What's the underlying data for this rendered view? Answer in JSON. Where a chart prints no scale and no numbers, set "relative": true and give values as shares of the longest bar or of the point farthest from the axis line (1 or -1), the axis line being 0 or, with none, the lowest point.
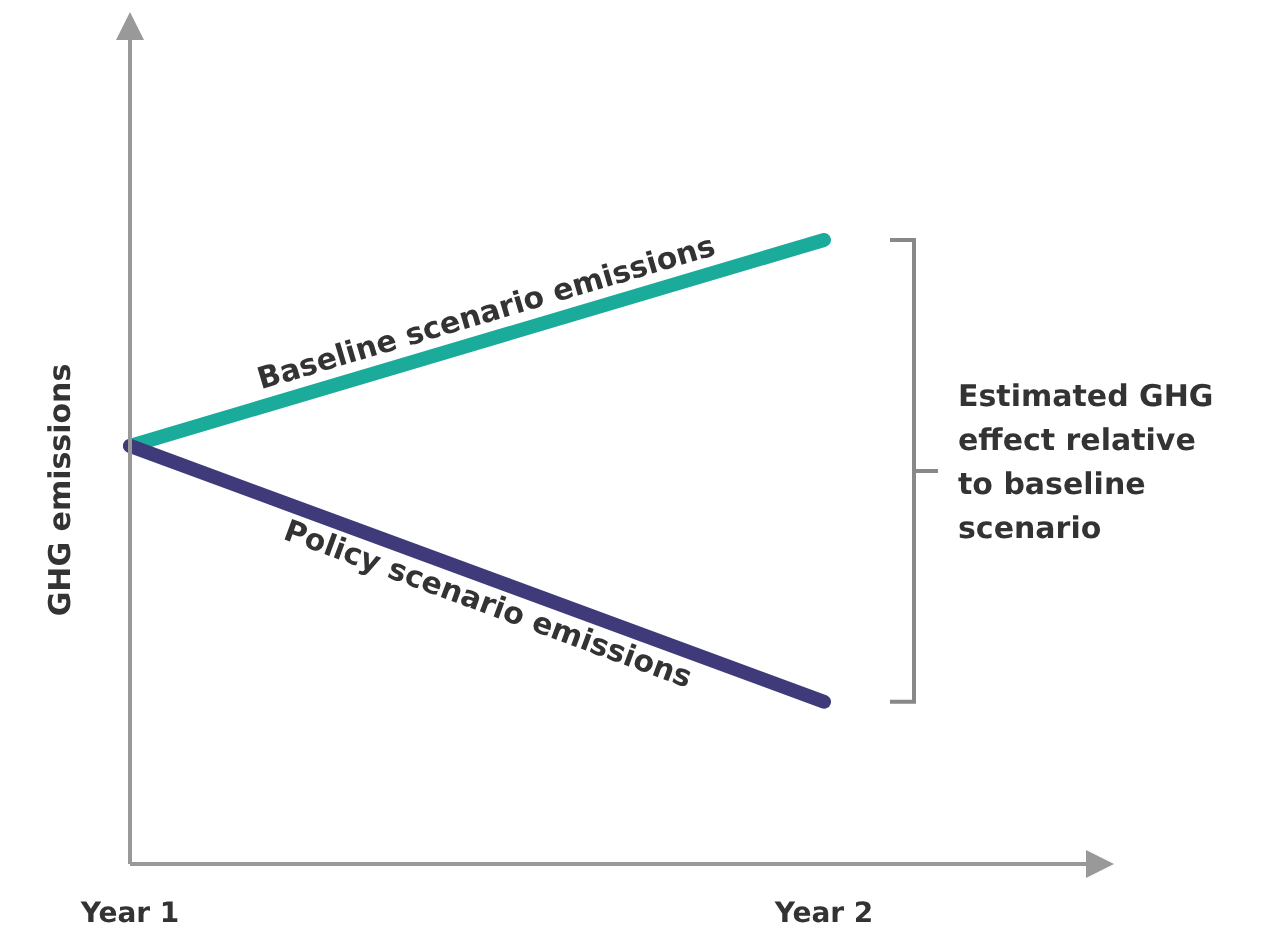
{
  "chart_data": {
    "type": "line",
    "relative": true,
    "ylabel": "GHG emissions",
    "categories": [
      "Year 1",
      "Year 2"
    ],
    "series": [
      {
        "name": "Baseline scenario emissions",
        "color": "#1aab9b",
        "values": [
          0.67,
          1
        ]
      },
      {
        "name": "Policy scenario emissions",
        "color": "#3f3a7a",
        "values": [
          0.67,
          0.26
        ]
      }
    ],
    "annotations": [
      "Estimated GHG effect relative to baseline scenario"
    ],
    "legend": false,
    "marker": "none",
    "line_style": "solid"
  }
}
